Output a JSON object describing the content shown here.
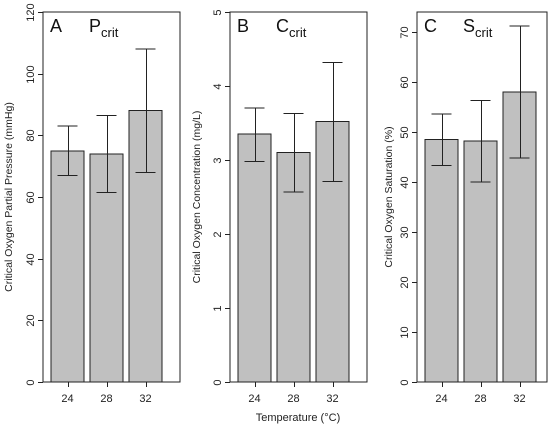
{
  "figure": {
    "xlabel": "Temperature (°C)"
  },
  "chart_data": [
    {
      "type": "bar",
      "panel_letter": "A",
      "title_main": "P",
      "title_sub": "crit",
      "ylabel": "Critical Oxygen Partial Pressure (mmHg)",
      "categories": [
        "24",
        "28",
        "32"
      ],
      "values": [
        75,
        74,
        88
      ],
      "error_low": [
        67,
        61.5,
        68
      ],
      "error_high": [
        83,
        86.5,
        108
      ],
      "ylim": [
        0,
        120
      ],
      "yticks": [
        0,
        20,
        40,
        60,
        80,
        100,
        120
      ],
      "grid": false
    },
    {
      "type": "bar",
      "panel_letter": "B",
      "title_main": "C",
      "title_sub": "crit",
      "ylabel": "Critical Oxygen Concentration (mg/L)",
      "categories": [
        "24",
        "28",
        "32"
      ],
      "values": [
        3.35,
        3.1,
        3.52
      ],
      "error_low": [
        2.98,
        2.57,
        2.71
      ],
      "error_high": [
        3.7,
        3.63,
        4.32
      ],
      "ylim": [
        0,
        5
      ],
      "yticks": [
        0,
        1,
        2,
        3,
        4,
        5
      ],
      "grid": false
    },
    {
      "type": "bar",
      "panel_letter": "C",
      "title_main": "S",
      "title_sub": "crit",
      "ylabel": "Critical Oxygen Saturation (%)",
      "categories": [
        "24",
        "28",
        "32"
      ],
      "values": [
        48.5,
        48.2,
        58
      ],
      "error_low": [
        43.3,
        40,
        44.8
      ],
      "error_high": [
        53.6,
        56.3,
        71.2
      ],
      "ylim": [
        0,
        74
      ],
      "yticks": [
        0,
        10,
        20,
        30,
        40,
        50,
        60,
        70
      ],
      "grid": false
    }
  ]
}
